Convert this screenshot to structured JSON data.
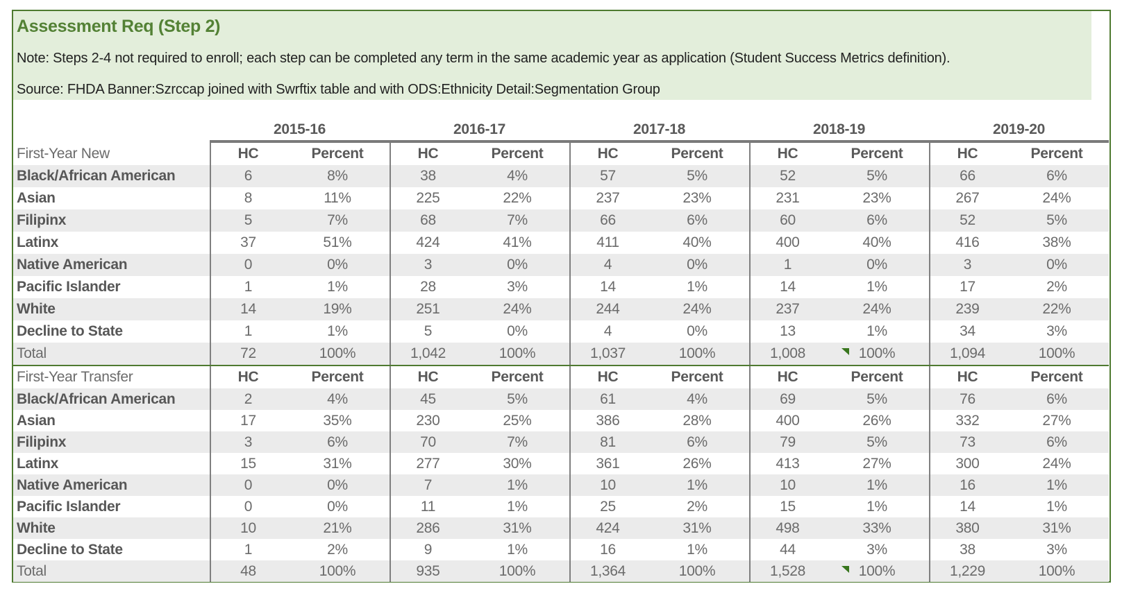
{
  "header": {
    "title": "Assessment Req (Step 2)",
    "note": "Note: Steps 2-4 not required to enroll; each step can be completed any term in the same academic year as application (Student Success Metrics definition).",
    "source": "Source: FHDA Banner:Szrccap joined with Swrftix table and with ODS:Ethnicity Detail:Segmentation Group"
  },
  "table": {
    "years": [
      "2015-16",
      "2016-17",
      "2017-18",
      "2018-19",
      "2019-20"
    ],
    "sub_headers": [
      "HC",
      "Percent"
    ],
    "sections": [
      {
        "label": "First-Year New",
        "rows": [
          {
            "label": "Black/African American",
            "bold": true,
            "cells": [
              [
                "6",
                "8%"
              ],
              [
                "38",
                "4%"
              ],
              [
                "57",
                "5%"
              ],
              [
                "52",
                "5%"
              ],
              [
                "66",
                "6%"
              ]
            ]
          },
          {
            "label": "Asian",
            "bold": true,
            "cells": [
              [
                "8",
                "11%"
              ],
              [
                "225",
                "22%"
              ],
              [
                "237",
                "23%"
              ],
              [
                "231",
                "23%"
              ],
              [
                "267",
                "24%"
              ]
            ]
          },
          {
            "label": "Filipinx",
            "bold": true,
            "cells": [
              [
                "5",
                "7%"
              ],
              [
                "68",
                "7%"
              ],
              [
                "66",
                "6%"
              ],
              [
                "60",
                "6%"
              ],
              [
                "52",
                "5%"
              ]
            ]
          },
          {
            "label": "Latinx",
            "bold": true,
            "cells": [
              [
                "37",
                "51%"
              ],
              [
                "424",
                "41%"
              ],
              [
                "411",
                "40%"
              ],
              [
                "400",
                "40%"
              ],
              [
                "416",
                "38%"
              ]
            ]
          },
          {
            "label": "Native American",
            "bold": true,
            "cells": [
              [
                "0",
                "0%"
              ],
              [
                "3",
                "0%"
              ],
              [
                "4",
                "0%"
              ],
              [
                "1",
                "0%"
              ],
              [
                "3",
                "0%"
              ]
            ]
          },
          {
            "label": "Pacific Islander",
            "bold": true,
            "cells": [
              [
                "1",
                "1%"
              ],
              [
                "28",
                "3%"
              ],
              [
                "14",
                "1%"
              ],
              [
                "14",
                "1%"
              ],
              [
                "17",
                "2%"
              ]
            ]
          },
          {
            "label": "White",
            "bold": true,
            "cells": [
              [
                "14",
                "19%"
              ],
              [
                "251",
                "24%"
              ],
              [
                "244",
                "24%"
              ],
              [
                "237",
                "24%"
              ],
              [
                "239",
                "22%"
              ]
            ]
          },
          {
            "label": "Decline to State",
            "bold": true,
            "cells": [
              [
                "1",
                "1%"
              ],
              [
                "5",
                "0%"
              ],
              [
                "4",
                "0%"
              ],
              [
                "13",
                "1%"
              ],
              [
                "34",
                "3%"
              ]
            ]
          },
          {
            "label": "Total",
            "bold": false,
            "cells": [
              [
                "72",
                "100%"
              ],
              [
                "1,042",
                "100%"
              ],
              [
                "1,037",
                "100%"
              ],
              [
                "1,008",
                "100%"
              ],
              [
                "1,094",
                "100%"
              ]
            ],
            "flag_year": "2018-19"
          }
        ]
      },
      {
        "label": "First-Year Transfer",
        "rows": [
          {
            "label": "Black/African American",
            "bold": true,
            "cells": [
              [
                "2",
                "4%"
              ],
              [
                "45",
                "5%"
              ],
              [
                "61",
                "4%"
              ],
              [
                "69",
                "5%"
              ],
              [
                "76",
                "6%"
              ]
            ]
          },
          {
            "label": "Asian",
            "bold": true,
            "cells": [
              [
                "17",
                "35%"
              ],
              [
                "230",
                "25%"
              ],
              [
                "386",
                "28%"
              ],
              [
                "400",
                "26%"
              ],
              [
                "332",
                "27%"
              ]
            ]
          },
          {
            "label": "Filipinx",
            "bold": true,
            "cells": [
              [
                "3",
                "6%"
              ],
              [
                "70",
                "7%"
              ],
              [
                "81",
                "6%"
              ],
              [
                "79",
                "5%"
              ],
              [
                "73",
                "6%"
              ]
            ]
          },
          {
            "label": "Latinx",
            "bold": true,
            "cells": [
              [
                "15",
                "31%"
              ],
              [
                "277",
                "30%"
              ],
              [
                "361",
                "26%"
              ],
              [
                "413",
                "27%"
              ],
              [
                "300",
                "24%"
              ]
            ]
          },
          {
            "label": "Native American",
            "bold": true,
            "cells": [
              [
                "0",
                "0%"
              ],
              [
                "7",
                "1%"
              ],
              [
                "10",
                "1%"
              ],
              [
                "10",
                "1%"
              ],
              [
                "16",
                "1%"
              ]
            ]
          },
          {
            "label": "Pacific Islander",
            "bold": true,
            "cells": [
              [
                "0",
                "0%"
              ],
              [
                "11",
                "1%"
              ],
              [
                "25",
                "2%"
              ],
              [
                "15",
                "1%"
              ],
              [
                "14",
                "1%"
              ]
            ]
          },
          {
            "label": "White",
            "bold": true,
            "cells": [
              [
                "10",
                "21%"
              ],
              [
                "286",
                "31%"
              ],
              [
                "424",
                "31%"
              ],
              [
                "498",
                "33%"
              ],
              [
                "380",
                "31%"
              ]
            ]
          },
          {
            "label": "Decline to State",
            "bold": true,
            "cells": [
              [
                "1",
                "2%"
              ],
              [
                "9",
                "1%"
              ],
              [
                "16",
                "1%"
              ],
              [
                "44",
                "3%"
              ],
              [
                "38",
                "3%"
              ]
            ]
          },
          {
            "label": "Total",
            "bold": false,
            "cells": [
              [
                "48",
                "100%"
              ],
              [
                "935",
                "100%"
              ],
              [
                "1,364",
                "100%"
              ],
              [
                "1,528",
                "100%"
              ],
              [
                "1,229",
                "100%"
              ]
            ],
            "flag_year": "2018-19"
          }
        ]
      }
    ]
  },
  "icons": {
    "flag": "green-triangle-flag"
  },
  "colors": {
    "accent_green": "#538135",
    "border_green": "#4e7a30",
    "header_bg": "#e3eedb",
    "stripe_gray": "#ebebeb",
    "divider_gray": "#7f7f7f",
    "text_gray": "#6b6b6b",
    "flag_green": "#38761d"
  }
}
